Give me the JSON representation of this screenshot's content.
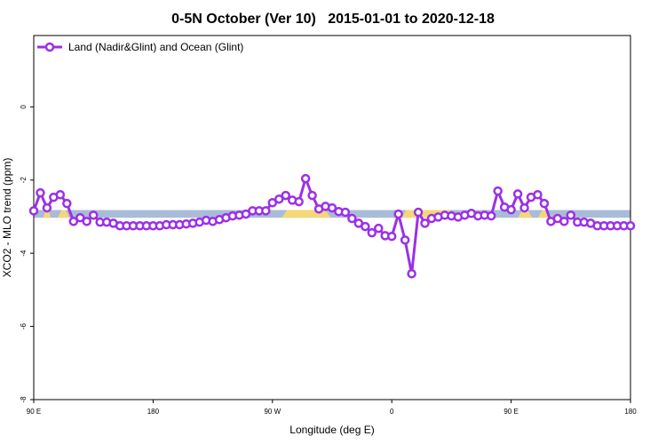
{
  "chart_data": {
    "type": "line",
    "title": "0-5N October (Ver 10)   2015-01-01 to 2020-12-18",
    "xlabel": "Longitude (deg E)",
    "ylabel": "XCO2 - MLO trend (ppm)",
    "x": [
      90,
      95,
      100,
      105,
      110,
      115,
      120,
      125,
      130,
      135,
      140,
      145,
      150,
      155,
      160,
      165,
      170,
      175,
      180,
      185,
      190,
      195,
      200,
      205,
      210,
      215,
      220,
      225,
      230,
      235,
      240,
      245,
      250,
      255,
      260,
      265,
      270,
      275,
      280,
      285,
      290,
      295,
      300,
      305,
      310,
      315,
      320,
      325,
      330,
      335,
      340,
      345,
      350,
      355,
      360,
      365,
      370,
      375,
      380,
      385,
      390,
      395,
      400,
      405,
      410,
      415,
      420,
      425,
      430,
      435,
      440,
      445,
      450,
      455,
      460,
      465,
      470,
      475,
      480,
      485,
      490,
      495,
      500,
      505,
      510,
      515,
      520,
      525,
      530,
      535,
      540
    ],
    "series": [
      {
        "name": "Land (Nadir&Glint) and Ocean (Glint)",
        "color": "#9b30e8",
        "values": [
          -2.84,
          -2.35,
          -2.76,
          -2.47,
          -2.4,
          -2.64,
          -3.13,
          -3.03,
          -3.13,
          -2.96,
          -3.15,
          -3.15,
          -3.18,
          -3.25,
          -3.25,
          -3.25,
          -3.25,
          -3.25,
          -3.25,
          -3.25,
          -3.22,
          -3.22,
          -3.22,
          -3.2,
          -3.18,
          -3.15,
          -3.1,
          -3.13,
          -3.08,
          -3.03,
          -2.98,
          -2.96,
          -2.93,
          -2.84,
          -2.84,
          -2.84,
          -2.62,
          -2.52,
          -2.42,
          -2.55,
          -2.59,
          -1.96,
          -2.42,
          -2.79,
          -2.72,
          -2.76,
          -2.86,
          -2.88,
          -3.05,
          -3.18,
          -3.27,
          -3.44,
          -3.32,
          -3.52,
          -3.54,
          -2.93,
          -3.64,
          -4.56,
          -2.88,
          -3.18,
          -3.05,
          -3.01,
          -2.96,
          -2.98,
          -3.01,
          -2.96,
          -2.91,
          -2.98,
          -2.96,
          -2.98,
          -2.3,
          -2.74,
          -2.81,
          -2.38,
          -2.76,
          -2.47,
          -2.4,
          -2.64,
          -3.13,
          -3.05,
          -3.13,
          -2.96,
          -3.15,
          -3.15,
          -3.18,
          -3.25,
          -3.25,
          -3.25,
          -3.25,
          -3.25,
          -3.25
        ]
      }
    ],
    "xlim": [
      90,
      540
    ],
    "xticks": [
      {
        "value": 90,
        "label": "90 E"
      },
      180,
      {
        "value": 270,
        "label": "90 W"
      },
      {
        "value": 360,
        "label": "0"
      },
      {
        "value": 450,
        "label": "90 E"
      },
      {
        "value": 540,
        "label": "180"
      }
    ],
    "ylim": [
      -8,
      1.95
    ],
    "yticks": [
      0,
      -2,
      -4,
      -6,
      -8
    ],
    "band": {
      "range": [
        -3.03,
        -2.82
      ],
      "color": "#a8bcd8"
    },
    "band_highlights": {
      "color": "#f5d77a",
      "ranges": [
        [
          97,
          103
        ],
        [
          108,
          117
        ],
        [
          277,
          314
        ],
        [
          367,
          407
        ],
        [
          455,
          466
        ],
        [
          470,
          481
        ]
      ]
    },
    "legend": "top-left"
  }
}
